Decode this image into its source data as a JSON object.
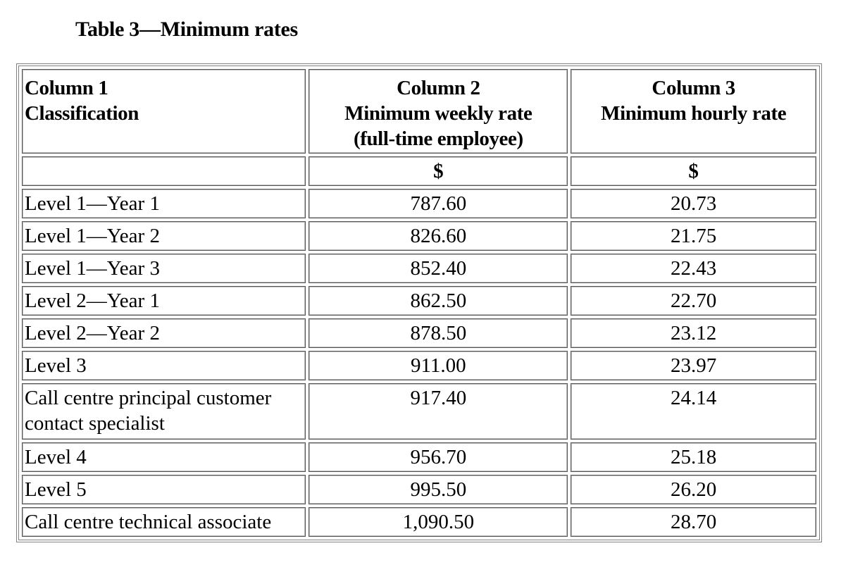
{
  "title": "Table 3—Minimum rates",
  "headers": {
    "col1": {
      "line1": "Column 1",
      "line2": "Classification"
    },
    "col2": {
      "line1": "Column 2",
      "line2": "Minimum weekly rate",
      "line3": "(full-time employee)"
    },
    "col3": {
      "line1": "Column 3",
      "line2": "Minimum hourly rate"
    }
  },
  "units": {
    "col1": "",
    "col2": "$",
    "col3": "$"
  },
  "rows": [
    {
      "classification": "Level 1—Year 1",
      "weekly": "787.60",
      "hourly": "20.73"
    },
    {
      "classification": "Level 1—Year 2",
      "weekly": "826.60",
      "hourly": "21.75"
    },
    {
      "classification": "Level 1—Year 3",
      "weekly": "852.40",
      "hourly": "22.43"
    },
    {
      "classification": "Level 2—Year 1",
      "weekly": "862.50",
      "hourly": "22.70"
    },
    {
      "classification": "Level 2—Year 2",
      "weekly": "878.50",
      "hourly": "23.12"
    },
    {
      "classification": "Level 3",
      "weekly": "911.00",
      "hourly": "23.97"
    },
    {
      "classification": "Call centre principal customer contact specialist",
      "weekly": "917.40",
      "hourly": "24.14"
    },
    {
      "classification": "Level 4",
      "weekly": "956.70",
      "hourly": "25.18"
    },
    {
      "classification": "Level 5",
      "weekly": "995.50",
      "hourly": "26.20"
    },
    {
      "classification": "Call centre technical associate",
      "weekly": "1,090.50",
      "hourly": "28.70"
    }
  ]
}
